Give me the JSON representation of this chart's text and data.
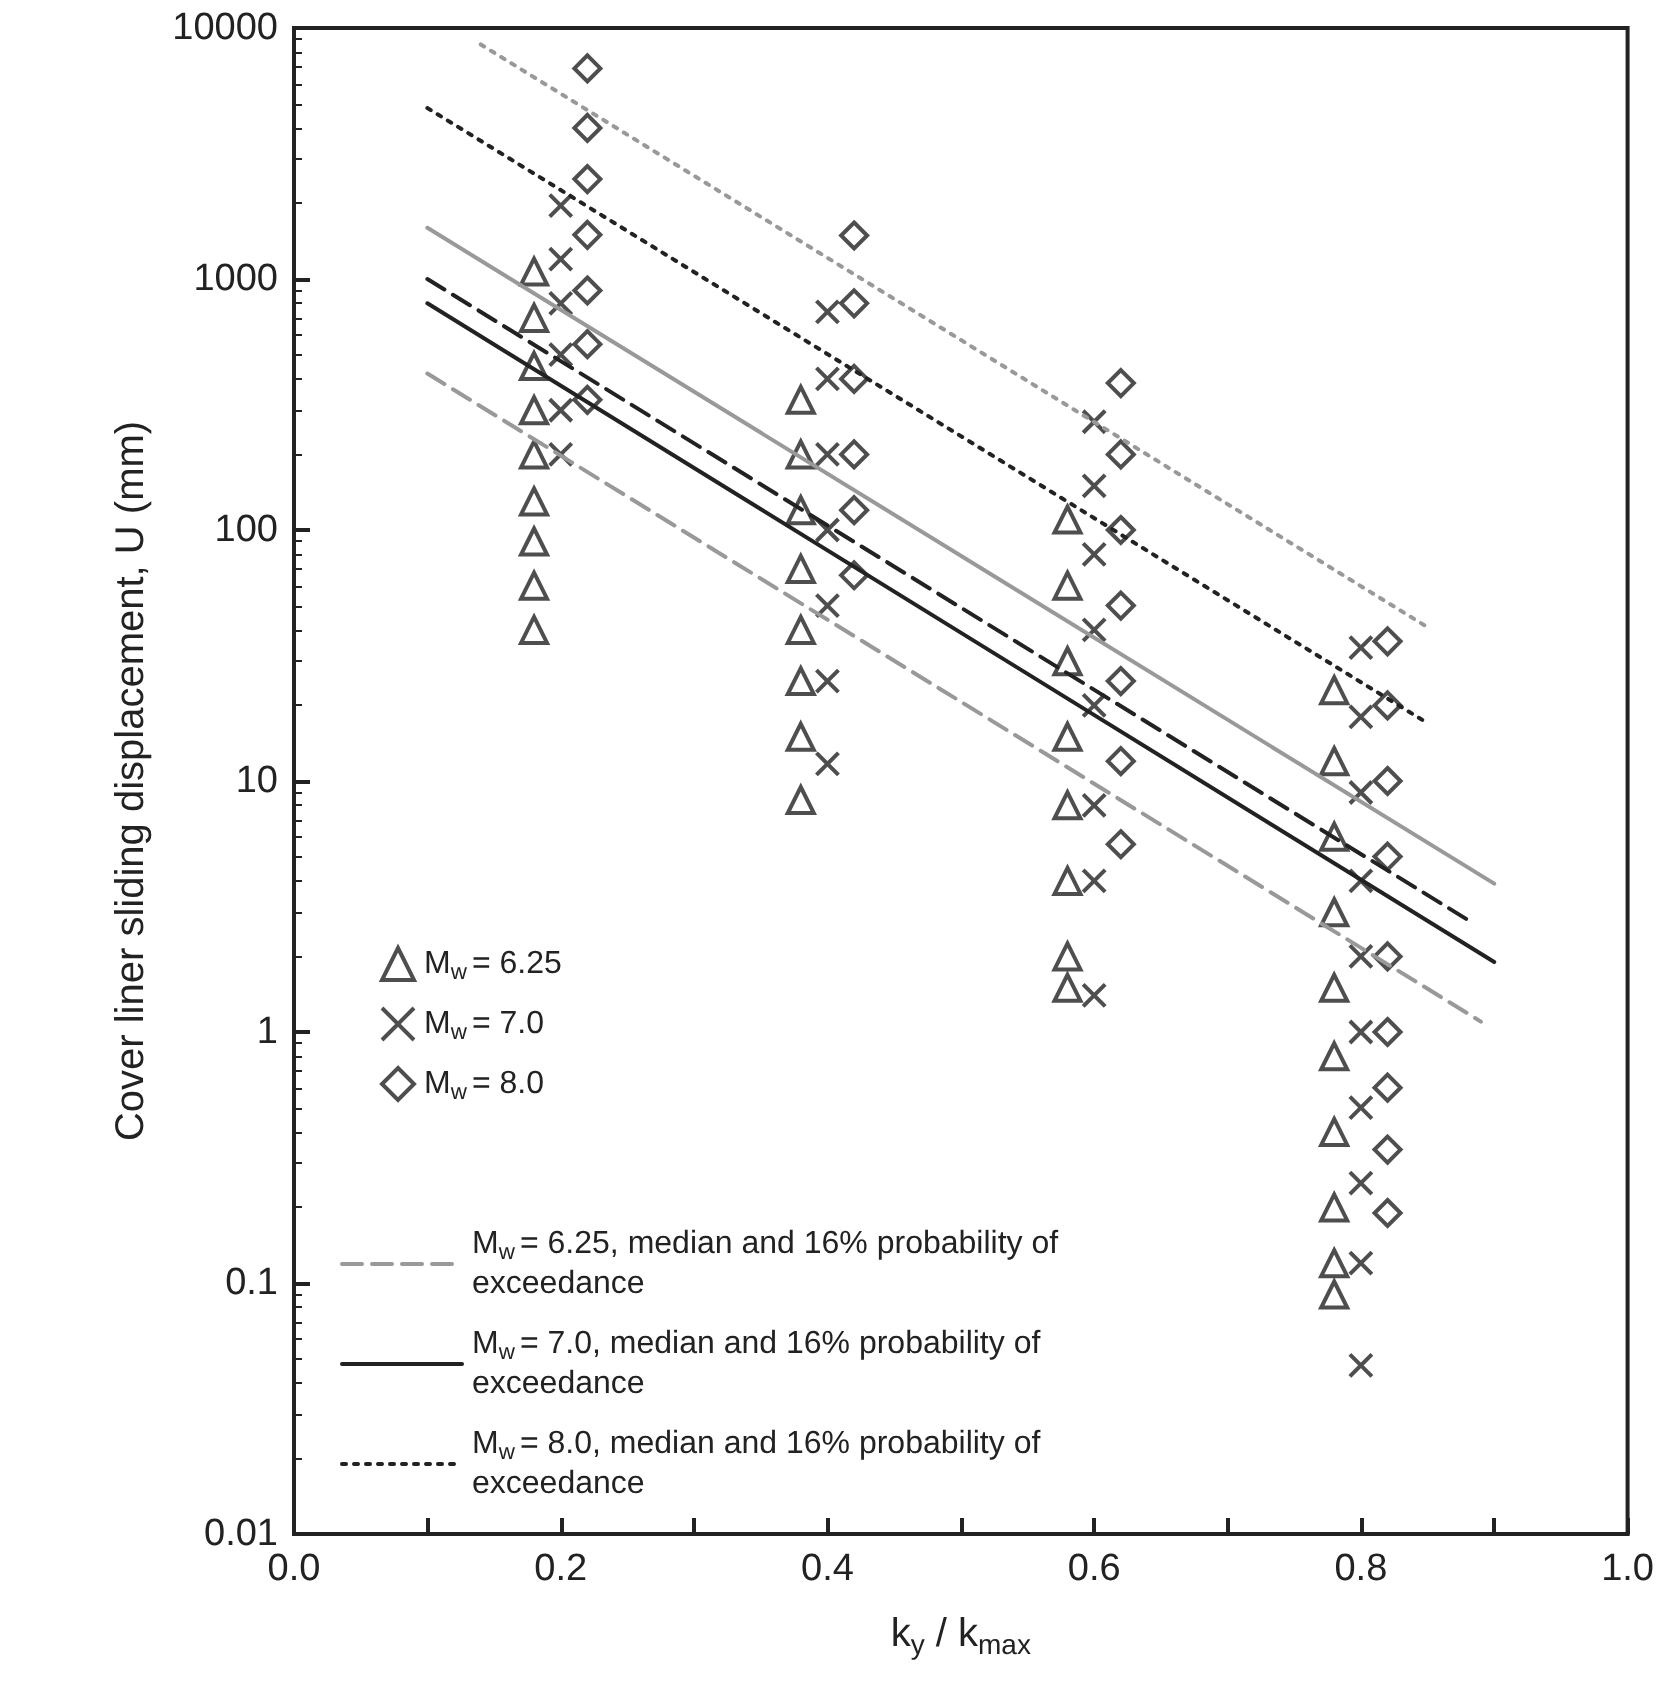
{
  "chart_data": {
    "type": "scatter",
    "xlabel": "k$_{y}$ / k$_{max}$",
    "ylabel": "Cover liner sliding displacement, U (mm)",
    "log": "y",
    "xlim": [
      0,
      1
    ],
    "ylim": [
      0.01,
      10000
    ],
    "xticks": [
      {
        "value": 0,
        "label": "0.0"
      },
      {
        "value": 0.1,
        "label": null
      },
      {
        "value": 0.2,
        "label": "0.2"
      },
      {
        "value": 0.3,
        "label": null
      },
      {
        "value": 0.4,
        "label": "0.4"
      },
      {
        "value": 0.5,
        "label": null
      },
      {
        "value": 0.6,
        "label": "0.6"
      },
      {
        "value": 0.7,
        "label": null
      },
      {
        "value": 0.8,
        "label": "0.8"
      },
      {
        "value": 0.9,
        "label": null
      },
      {
        "value": 1,
        "label": "1.0"
      }
    ],
    "yticks": [
      0.01,
      0.1,
      1,
      10,
      100,
      1000,
      10000
    ],
    "grid": false,
    "legend": "bottom left",
    "series": [
      {
        "name": "M$_{w}$ = 6.25",
        "marker": "triangle",
        "color": "#222222",
        "x": [
          0.18,
          0.18,
          0.18,
          0.18,
          0.18,
          0.18,
          0.18,
          0.18,
          0.18,
          0.38,
          0.38,
          0.38,
          0.38,
          0.38,
          0.38,
          0.38,
          0.38,
          0.58,
          0.58,
          0.58,
          0.58,
          0.58,
          0.58,
          0.58,
          0.58,
          0.78,
          0.78,
          0.78,
          0.78,
          0.78,
          0.78,
          0.78,
          0.78,
          0.78,
          0.78
        ],
        "values": [
          1070,
          700,
          450,
          300,
          200,
          130,
          90,
          60,
          40,
          330,
          200,
          120,
          70,
          40,
          25,
          15,
          8.4,
          110,
          60,
          30,
          15,
          8,
          4,
          2,
          1.5,
          23,
          12,
          6,
          3,
          1.5,
          0.8,
          0.4,
          0.2,
          0.12,
          0.09
        ]
      },
      {
        "name": "M$_{w}$ = 7.0",
        "marker": "cross",
        "color": "#222222",
        "x": [
          0.2,
          0.2,
          0.2,
          0.2,
          0.2,
          0.2,
          0.4,
          0.4,
          0.4,
          0.4,
          0.4,
          0.4,
          0.4,
          0.6,
          0.6,
          0.6,
          0.6,
          0.6,
          0.6,
          0.6,
          0.6,
          0.8,
          0.8,
          0.8,
          0.8,
          0.8,
          0.8,
          0.8,
          0.8,
          0.8,
          0.8
        ],
        "values": [
          1960,
          1200,
          800,
          500,
          300,
          200,
          740,
          400,
          200,
          100,
          50,
          25,
          11.7,
          270,
          150,
          80,
          40,
          20,
          8,
          4,
          1.4,
          34,
          18,
          9,
          4,
          2,
          1,
          0.5,
          0.25,
          0.12,
          0.047
        ]
      },
      {
        "name": "M$_{w}$ = 8.0",
        "marker": "diamond",
        "color": "#222222",
        "x": [
          0.22,
          0.22,
          0.22,
          0.22,
          0.22,
          0.22,
          0.22,
          0.42,
          0.42,
          0.42,
          0.42,
          0.42,
          0.42,
          0.62,
          0.62,
          0.62,
          0.62,
          0.62,
          0.62,
          0.62,
          0.82,
          0.82,
          0.82,
          0.82,
          0.82,
          0.82,
          0.82,
          0.82,
          0.82
        ],
        "values": [
          6900,
          4000,
          2500,
          1500,
          900,
          550,
          330,
          1490,
          800,
          400,
          200,
          120,
          66,
          385,
          200,
          100,
          50,
          25,
          12,
          5.6,
          36,
          20,
          10,
          5,
          2,
          1,
          0.6,
          0.34,
          0.19
        ]
      },
      {
        "name": "M$_{w}$ = 6.25, median and 16% probability of exceedance",
        "type": "line",
        "marker": "none",
        "line_style": "dashed",
        "color": "#999999",
        "x": [
          0.1,
          0.89
        ],
        "values": [
          420,
          1.1
        ]
      },
      {
        "type": "line",
        "marker": "none",
        "line_style": "dashed",
        "color": "#222222",
        "x": [
          0.1,
          0.88
        ],
        "values": [
          1000,
          2.8
        ]
      },
      {
        "name": "M$_{w}$ = 7.0, median and 16% probability of exceedance",
        "type": "line",
        "marker": "none",
        "line_style": "solid",
        "color": "#222222",
        "x": [
          0.1,
          0.9
        ],
        "values": [
          800,
          1.9
        ]
      },
      {
        "type": "line",
        "marker": "none",
        "line_style": "solid",
        "color": "#999999",
        "x": [
          0.1,
          0.9
        ],
        "values": [
          1600,
          3.9
        ]
      },
      {
        "name": "M$_{w}$ = 8.0, median and 16% probability of exceedance",
        "type": "line",
        "marker": "none",
        "line_style": "dotted",
        "color": "#222222",
        "x": [
          0.1,
          0.85
        ],
        "values": [
          4800,
          17
        ]
      },
      {
        "type": "line",
        "marker": "none",
        "line_style": "dotted",
        "color": "#999999",
        "x": [
          0.14,
          0.85
        ],
        "values": [
          8600,
          41
        ]
      }
    ]
  }
}
